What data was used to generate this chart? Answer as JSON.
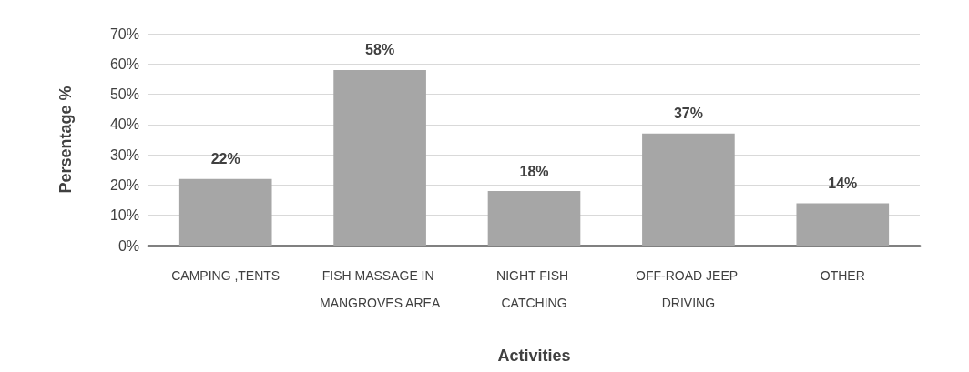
{
  "chart_data": {
    "type": "bar",
    "xlabel": "Activities",
    "ylabel": "Persentage %",
    "categories": [
      "CAMPING ,TENTS",
      "FISH MASSAGE IN MANGROVES AREA",
      "NIGHT FISH CATCHING",
      "OFF-ROAD JEEP DRIVING",
      "OTHER"
    ],
    "values": [
      22,
      58,
      18,
      37,
      14
    ],
    "value_labels": [
      "22%",
      "58%",
      "18%",
      "37%",
      "14%"
    ],
    "color": "#a6a6a6",
    "ylim": [
      0,
      70
    ],
    "yticks": [
      {
        "value": 0,
        "label": "0%"
      },
      {
        "value": 10,
        "label": "10%"
      },
      {
        "value": 20,
        "label": "20%"
      },
      {
        "value": 30,
        "label": "30%"
      },
      {
        "value": 40,
        "label": "40%"
      },
      {
        "value": 50,
        "label": "50%"
      },
      {
        "value": 60,
        "label": "60%"
      },
      {
        "value": 70,
        "label": "70%"
      }
    ],
    "grid": "y"
  }
}
